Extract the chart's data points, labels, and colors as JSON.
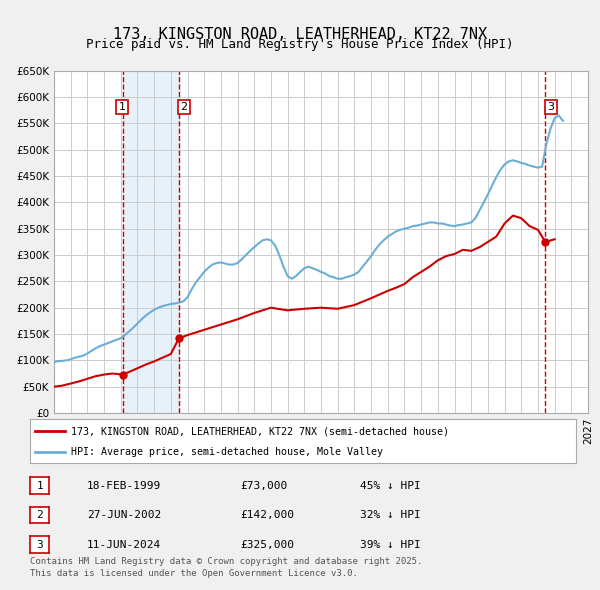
{
  "title": "173, KINGSTON ROAD, LEATHERHEAD, KT22 7NX",
  "subtitle": "Price paid vs. HM Land Registry's House Price Index (HPI)",
  "title_fontsize": 11,
  "subtitle_fontsize": 9,
  "hpi_color": "#6baed6",
  "price_color": "#cc0000",
  "vline_color": "#cc0000",
  "shade_color": "#d0e4f7",
  "background_color": "#f0f0f0",
  "plot_bg_color": "#ffffff",
  "grid_color": "#cccccc",
  "ylim": [
    0,
    650000
  ],
  "yticks": [
    0,
    50000,
    100000,
    150000,
    200000,
    250000,
    300000,
    350000,
    400000,
    450000,
    500000,
    550000,
    600000,
    650000
  ],
  "ytick_labels": [
    "£0",
    "£50K",
    "£100K",
    "£150K",
    "£200K",
    "£250K",
    "£300K",
    "£350K",
    "£400K",
    "£450K",
    "£500K",
    "£550K",
    "£600K",
    "£650K"
  ],
  "xlim_start": 1995.0,
  "xlim_end": 2027.0,
  "transactions": [
    {
      "id": 1,
      "date_dec": 1999.12,
      "price": 73000,
      "label": "1",
      "date_str": "18-FEB-1999",
      "pct": "45%",
      "direction": "↓"
    },
    {
      "id": 2,
      "date_dec": 2002.49,
      "price": 142000,
      "label": "2",
      "date_str": "27-JUN-2002",
      "pct": "32%",
      "direction": "↓"
    },
    {
      "id": 3,
      "date_dec": 2024.44,
      "price": 325000,
      "label": "3",
      "date_str": "11-JUN-2024",
      "pct": "39%",
      "direction": "↓"
    }
  ],
  "shade_start": 1999.12,
  "shade_end": 2002.49,
  "legend_line1": "173, KINGSTON ROAD, LEATHERHEAD, KT22 7NX (semi-detached house)",
  "legend_line2": "HPI: Average price, semi-detached house, Mole Valley",
  "footer1": "Contains HM Land Registry data © Crown copyright and database right 2025.",
  "footer2": "This data is licensed under the Open Government Licence v3.0.",
  "hpi_data_x": [
    1995.0,
    1995.25,
    1995.5,
    1995.75,
    1996.0,
    1996.25,
    1996.5,
    1996.75,
    1997.0,
    1997.25,
    1997.5,
    1997.75,
    1998.0,
    1998.25,
    1998.5,
    1998.75,
    1999.0,
    1999.25,
    1999.5,
    1999.75,
    2000.0,
    2000.25,
    2000.5,
    2000.75,
    2001.0,
    2001.25,
    2001.5,
    2001.75,
    2002.0,
    2002.25,
    2002.5,
    2002.75,
    2003.0,
    2003.25,
    2003.5,
    2003.75,
    2004.0,
    2004.25,
    2004.5,
    2004.75,
    2005.0,
    2005.25,
    2005.5,
    2005.75,
    2006.0,
    2006.25,
    2006.5,
    2006.75,
    2007.0,
    2007.25,
    2007.5,
    2007.75,
    2008.0,
    2008.25,
    2008.5,
    2008.75,
    2009.0,
    2009.25,
    2009.5,
    2009.75,
    2010.0,
    2010.25,
    2010.5,
    2010.75,
    2011.0,
    2011.25,
    2011.5,
    2011.75,
    2012.0,
    2012.25,
    2012.5,
    2012.75,
    2013.0,
    2013.25,
    2013.5,
    2013.75,
    2014.0,
    2014.25,
    2014.5,
    2014.75,
    2015.0,
    2015.25,
    2015.5,
    2015.75,
    2016.0,
    2016.25,
    2016.5,
    2016.75,
    2017.0,
    2017.25,
    2017.5,
    2017.75,
    2018.0,
    2018.25,
    2018.5,
    2018.75,
    2019.0,
    2019.25,
    2019.5,
    2019.75,
    2020.0,
    2020.25,
    2020.5,
    2020.75,
    2021.0,
    2021.25,
    2021.5,
    2021.75,
    2022.0,
    2022.25,
    2022.5,
    2022.75,
    2023.0,
    2023.25,
    2023.5,
    2023.75,
    2024.0,
    2024.25,
    2024.5,
    2024.75,
    2025.0,
    2025.25,
    2025.5
  ],
  "hpi_data_y": [
    97000,
    98500,
    99000,
    100000,
    102000,
    105000,
    107000,
    109000,
    113000,
    118000,
    123000,
    127000,
    130000,
    133000,
    136000,
    139000,
    142000,
    148000,
    155000,
    162000,
    170000,
    178000,
    185000,
    191000,
    196000,
    200000,
    203000,
    205000,
    207000,
    208000,
    210000,
    212000,
    220000,
    235000,
    248000,
    258000,
    268000,
    276000,
    282000,
    285000,
    286000,
    284000,
    282000,
    282000,
    285000,
    292000,
    300000,
    308000,
    315000,
    322000,
    328000,
    330000,
    328000,
    318000,
    300000,
    278000,
    260000,
    255000,
    260000,
    268000,
    275000,
    278000,
    275000,
    272000,
    268000,
    265000,
    260000,
    258000,
    255000,
    255000,
    258000,
    260000,
    263000,
    268000,
    278000,
    288000,
    298000,
    310000,
    320000,
    328000,
    335000,
    340000,
    345000,
    348000,
    350000,
    352000,
    355000,
    356000,
    358000,
    360000,
    362000,
    362000,
    360000,
    360000,
    358000,
    356000,
    355000,
    357000,
    358000,
    360000,
    362000,
    370000,
    385000,
    400000,
    415000,
    432000,
    448000,
    462000,
    472000,
    478000,
    480000,
    478000,
    475000,
    473000,
    470000,
    468000,
    466000,
    468000,
    510000,
    540000,
    560000,
    565000,
    555000
  ],
  "price_data_x": [
    1995.0,
    1995.5,
    1996.0,
    1996.5,
    1997.0,
    1997.5,
    1998.0,
    1998.5,
    1999.12,
    1999.5,
    2000.0,
    2000.5,
    2001.0,
    2001.5,
    2002.0,
    2002.49,
    2003.0,
    2004.0,
    2005.0,
    2006.0,
    2007.0,
    2008.0,
    2009.0,
    2010.0,
    2011.0,
    2012.0,
    2013.0,
    2014.0,
    2015.0,
    2015.5,
    2016.0,
    2016.5,
    2017.0,
    2017.5,
    2018.0,
    2018.5,
    2019.0,
    2019.5,
    2020.0,
    2020.5,
    2021.0,
    2021.5,
    2022.0,
    2022.5,
    2023.0,
    2023.5,
    2024.0,
    2024.44,
    2025.0
  ],
  "price_data_y": [
    50000,
    52000,
    56000,
    60000,
    65000,
    70000,
    73000,
    75000,
    73000,
    78000,
    85000,
    92000,
    98000,
    105000,
    112000,
    142000,
    148000,
    158000,
    168000,
    178000,
    190000,
    200000,
    195000,
    198000,
    200000,
    198000,
    205000,
    218000,
    232000,
    238000,
    245000,
    258000,
    268000,
    278000,
    290000,
    298000,
    302000,
    310000,
    308000,
    315000,
    325000,
    335000,
    360000,
    375000,
    370000,
    355000,
    348000,
    325000,
    330000
  ]
}
